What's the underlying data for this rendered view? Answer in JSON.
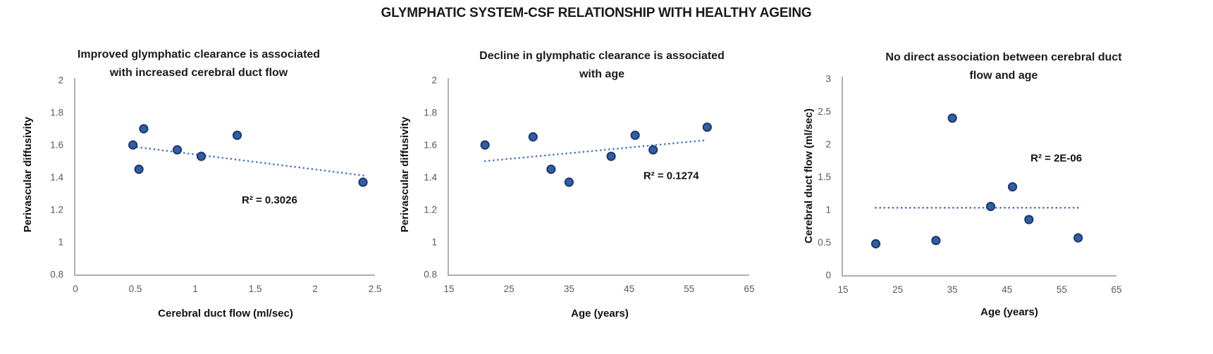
{
  "figure_title": "GLYMPHATIC SYSTEM-CSF RELATIONSHIP WITH HEALTHY AGEING",
  "colors": {
    "marker_fill": "#2E5FAC",
    "marker_stroke": "#1F3864",
    "trendline": "#4472C4",
    "axis_line": "#AFAFAF",
    "tick_label": "#595959",
    "text": "#1A1A1A",
    "background": "#FFFFFF"
  },
  "chart_data": [
    {
      "type": "scatter",
      "title_lines": [
        "Improved glymphatic clearance is associated",
        "with increased cerebral duct flow"
      ],
      "xlabel": "Cerebral duct flow (ml/sec)",
      "ylabel": "Perivascular diffusivity",
      "xlim": [
        0,
        2.5
      ],
      "ylim": [
        0.8,
        2
      ],
      "xtick_labels": [
        "0",
        "0.5",
        "1",
        "1.5",
        "2",
        "2.5"
      ],
      "ytick_labels": [
        "0.8",
        "1",
        "1.2",
        "1.4",
        "1.6",
        "1.8",
        "2"
      ],
      "grid": false,
      "points": [
        [
          0.48,
          1.6
        ],
        [
          0.53,
          1.45
        ],
        [
          0.57,
          1.7
        ],
        [
          0.85,
          1.57
        ],
        [
          1.05,
          1.53
        ],
        [
          1.35,
          1.66
        ],
        [
          2.4,
          1.37
        ]
      ],
      "trendline": {
        "style": "dotted",
        "x1": 0.48,
        "y1": 1.59,
        "x2": 2.42,
        "y2": 1.41
      },
      "annotation": {
        "text": "R² = 0.3026",
        "x": 1.62,
        "y": 1.26
      }
    },
    {
      "type": "scatter",
      "title_lines": [
        "Decline in glymphatic clearance is associated",
        "with age"
      ],
      "xlabel": "Age (years)",
      "ylabel": "Perivascular diffusivity",
      "xlim": [
        15,
        65
      ],
      "ylim": [
        0.8,
        2
      ],
      "xtick_labels": [
        "15",
        "25",
        "35",
        "45",
        "55",
        "65"
      ],
      "ytick_labels": [
        "0.8",
        "1",
        "1.2",
        "1.4",
        "1.6",
        "1.8",
        "2"
      ],
      "grid": false,
      "points": [
        [
          21,
          1.6
        ],
        [
          29,
          1.65
        ],
        [
          32,
          1.45
        ],
        [
          35,
          1.37
        ],
        [
          42,
          1.53
        ],
        [
          46,
          1.66
        ],
        [
          49,
          1.57
        ],
        [
          58,
          1.71
        ]
      ],
      "trendline": {
        "style": "dotted",
        "x1": 21,
        "y1": 1.5,
        "x2": 58,
        "y2": 1.63
      },
      "annotation": {
        "text": "R² = 0.1274",
        "x": 52,
        "y": 1.41
      }
    },
    {
      "type": "scatter",
      "title_lines": [
        "No direct association between cerebral duct",
        "flow and age"
      ],
      "xlabel": "Age (years)",
      "ylabel": "Cerebral duct flow (ml/sec)",
      "xlim": [
        15,
        65
      ],
      "ylim": [
        0,
        3
      ],
      "xtick_labels": [
        "15",
        "25",
        "35",
        "45",
        "55",
        "65"
      ],
      "ytick_labels": [
        "0",
        "0.5",
        "1",
        "1.5",
        "2",
        "2.5",
        "3"
      ],
      "grid": false,
      "points": [
        [
          21,
          0.48
        ],
        [
          32,
          0.53
        ],
        [
          35,
          2.4
        ],
        [
          42,
          1.05
        ],
        [
          46,
          1.35
        ],
        [
          49,
          0.85
        ],
        [
          58,
          0.57
        ]
      ],
      "trendline": {
        "style": "dotted",
        "x1": 21,
        "y1": 1.03,
        "x2": 58,
        "y2": 1.03
      },
      "annotation": {
        "text": "R² = 2E-06",
        "x": 54,
        "y": 1.79
      }
    }
  ]
}
